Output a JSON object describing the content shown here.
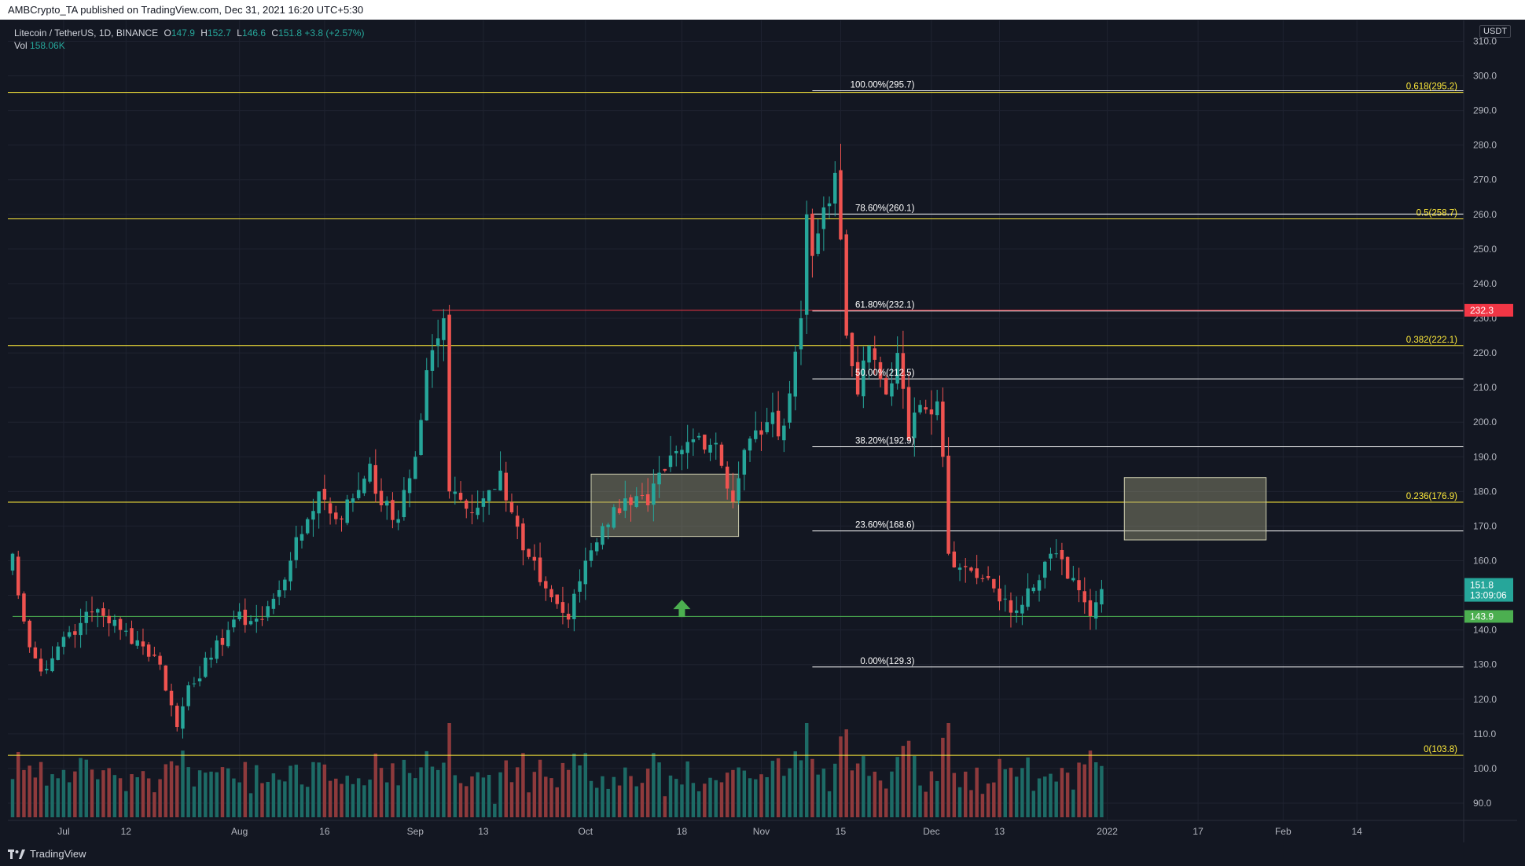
{
  "header": {
    "publisher_line": "AMBCrypto_TA published on TradingView.com, Dec 31, 2021 16:20 UTC+5:30"
  },
  "legend": {
    "symbol": "Litecoin / TetherUS, 1D, BINANCE",
    "open_label": "O",
    "open": "147.9",
    "high_label": "H",
    "high": "152.7",
    "low_label": "L",
    "low": "146.6",
    "close_label": "C",
    "close": "151.8",
    "change": "+3.8 (+2.57%)",
    "vol_label": "Vol",
    "vol": "158.06K"
  },
  "currency": "USDT",
  "footer": {
    "brand": "TradingView"
  },
  "colors": {
    "background": "#131722",
    "up": "#26a69a",
    "down": "#ef5350",
    "vol_up": "#1d6b66",
    "vol_down": "#8e3a3c",
    "yellow_level": "#ffeb3b",
    "white_level": "#ffffff",
    "red_level": "#f23645",
    "green_level": "#4caf50",
    "zone": "rgba(150,150,120,0.45)",
    "arrow": "#4caf50"
  },
  "chart_data": {
    "type": "candlestick",
    "x_start": "2021-06-22",
    "x_range": [
      "2021-06-22",
      "2022-03-04"
    ],
    "ylim": [
      85,
      316
    ],
    "y_ticks": [
      90,
      100,
      110,
      120,
      130,
      140,
      150,
      160,
      170,
      180,
      190,
      200,
      210,
      220,
      230,
      240,
      250,
      260,
      270,
      280,
      290,
      300,
      310
    ],
    "x_ticks": [
      {
        "label": "Jul",
        "date": "2021-07-01"
      },
      {
        "label": "12",
        "date": "2021-07-12"
      },
      {
        "label": "Aug",
        "date": "2021-08-01"
      },
      {
        "label": "16",
        "date": "2021-08-16"
      },
      {
        "label": "Sep",
        "date": "2021-09-01"
      },
      {
        "label": "13",
        "date": "2021-09-13"
      },
      {
        "label": "Oct",
        "date": "2021-10-01"
      },
      {
        "label": "18",
        "date": "2021-10-18"
      },
      {
        "label": "Nov",
        "date": "2021-11-01"
      },
      {
        "label": "15",
        "date": "2021-11-15"
      },
      {
        "label": "Dec",
        "date": "2021-12-01"
      },
      {
        "label": "13",
        "date": "2021-12-13"
      },
      {
        "label": "2022",
        "date": "2022-01-01"
      },
      {
        "label": "17",
        "date": "2022-01-17"
      },
      {
        "label": "Feb",
        "date": "2022-02-01"
      },
      {
        "label": "14",
        "date": "2022-02-14"
      }
    ],
    "close_anchors": [
      [
        "2021-06-22",
        162
      ],
      [
        "2021-06-23",
        150
      ],
      [
        "2021-06-25",
        135
      ],
      [
        "2021-06-27",
        128
      ],
      [
        "2021-07-01",
        138
      ],
      [
        "2021-07-04",
        142
      ],
      [
        "2021-07-07",
        146
      ],
      [
        "2021-07-11",
        140
      ],
      [
        "2021-07-14",
        137
      ],
      [
        "2021-07-18",
        130
      ],
      [
        "2021-07-21",
        112
      ],
      [
        "2021-07-23",
        124
      ],
      [
        "2021-07-27",
        132
      ],
      [
        "2021-07-31",
        143
      ],
      [
        "2021-08-05",
        143
      ],
      [
        "2021-08-07",
        149
      ],
      [
        "2021-08-10",
        160
      ],
      [
        "2021-08-13",
        172
      ],
      [
        "2021-08-15",
        180
      ],
      [
        "2021-08-18",
        172
      ],
      [
        "2021-08-21",
        178
      ],
      [
        "2021-08-24",
        188
      ],
      [
        "2021-08-26",
        176
      ],
      [
        "2021-08-29",
        172
      ],
      [
        "2021-09-01",
        190
      ],
      [
        "2021-09-03",
        215
      ],
      [
        "2021-09-06",
        230
      ],
      [
        "2021-09-07",
        180
      ],
      [
        "2021-09-10",
        175
      ],
      [
        "2021-09-13",
        178
      ],
      [
        "2021-09-16",
        186
      ],
      [
        "2021-09-20",
        163
      ],
      [
        "2021-09-24",
        152
      ],
      [
        "2021-09-28",
        143
      ],
      [
        "2021-10-01",
        160
      ],
      [
        "2021-10-04",
        170
      ],
      [
        "2021-10-08",
        178
      ],
      [
        "2021-10-12",
        176
      ],
      [
        "2021-10-15",
        186
      ],
      [
        "2021-10-18",
        192
      ],
      [
        "2021-10-21",
        196
      ],
      [
        "2021-10-24",
        194
      ],
      [
        "2021-10-27",
        177
      ],
      [
        "2021-10-29",
        192
      ],
      [
        "2021-11-02",
        200
      ],
      [
        "2021-11-05",
        199
      ],
      [
        "2021-11-08",
        230
      ],
      [
        "2021-11-09",
        260
      ],
      [
        "2021-11-10",
        248
      ],
      [
        "2021-11-12",
        262
      ],
      [
        "2021-11-14",
        272
      ],
      [
        "2021-11-16",
        225
      ],
      [
        "2021-11-18",
        208
      ],
      [
        "2021-11-20",
        222
      ],
      [
        "2021-11-23",
        208
      ],
      [
        "2021-11-25",
        220
      ],
      [
        "2021-11-27",
        195
      ],
      [
        "2021-11-29",
        205
      ],
      [
        "2021-12-02",
        206
      ],
      [
        "2021-12-03",
        190
      ],
      [
        "2021-12-04",
        162
      ],
      [
        "2021-12-06",
        158
      ],
      [
        "2021-12-09",
        155
      ],
      [
        "2021-12-12",
        152
      ],
      [
        "2021-12-15",
        145
      ],
      [
        "2021-12-18",
        152
      ],
      [
        "2021-12-22",
        162
      ],
      [
        "2021-12-26",
        155
      ],
      [
        "2021-12-28",
        148
      ],
      [
        "2021-12-29",
        144
      ],
      [
        "2021-12-30",
        148
      ],
      [
        "2021-12-31",
        151.8
      ]
    ],
    "fib_retracement": {
      "levels": [
        {
          "label": "100.00%(295.7)",
          "value": 295.7
        },
        {
          "label": "78.60%(260.1)",
          "value": 260.1
        },
        {
          "label": "61.80%(232.1)",
          "value": 232.1
        },
        {
          "label": "50.00%(212.5)",
          "value": 212.5
        },
        {
          "label": "38.20%(192.9)",
          "value": 192.9
        },
        {
          "label": "23.60%(168.6)",
          "value": 168.6
        },
        {
          "label": "0.00%(129.3)",
          "value": 129.3
        }
      ],
      "start_date": "2021-11-10"
    },
    "fib_extension": {
      "levels": [
        {
          "label": "0.618(295.2)",
          "value": 295.2
        },
        {
          "label": "0.5(258.7)",
          "value": 258.7
        },
        {
          "label": "0.382(222.1)",
          "value": 222.1
        },
        {
          "label": "0.236(176.9)",
          "value": 176.9
        },
        {
          "label": "0(103.8)",
          "value": 103.8
        }
      ]
    },
    "horizontal_levels": [
      {
        "value": 232.3,
        "label": "232.3",
        "color": "#f23645",
        "start_date": "2021-09-04"
      },
      {
        "value": 143.9,
        "label": "143.9",
        "color": "#4caf50",
        "start_date": "2021-06-22"
      }
    ],
    "current_price": {
      "label": "151.8",
      "countdown": "13:09:06",
      "value": 151.8
    },
    "zones": [
      {
        "start": "2021-10-02",
        "end": "2021-10-28",
        "low": 167,
        "high": 185
      },
      {
        "start": "2022-01-04",
        "end": "2022-01-29",
        "low": 166,
        "high": 184
      }
    ],
    "arrow": {
      "date": "2021-10-18",
      "value": 146,
      "direction": "up"
    }
  }
}
